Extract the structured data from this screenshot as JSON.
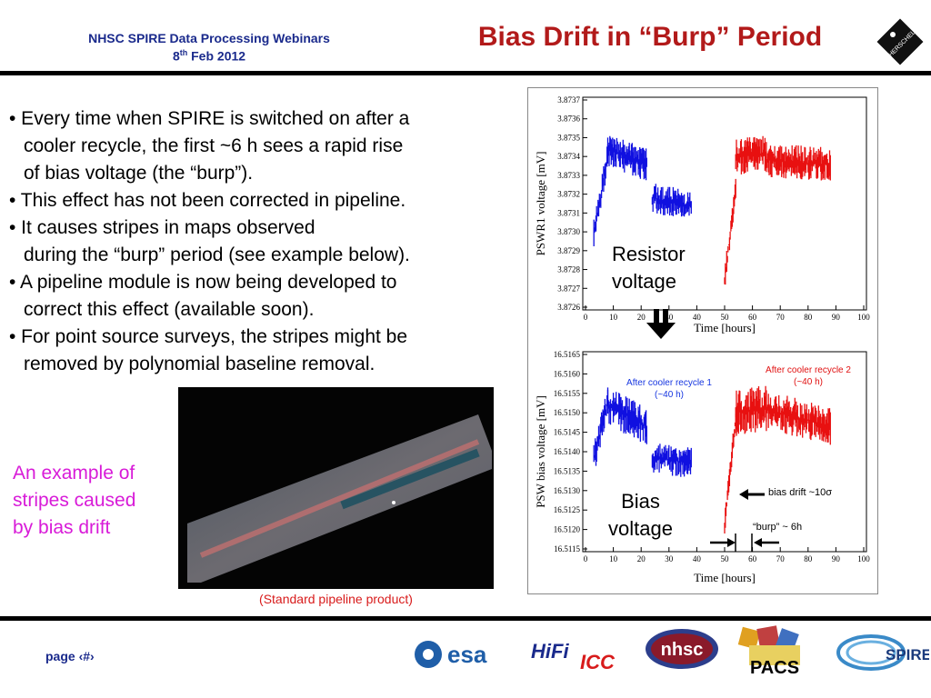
{
  "header": {
    "webinar_title": "NHSC SPIRE Data Processing Webinars",
    "date_day": "8",
    "date_suffix": "th",
    "date_rest": " Feb 2012",
    "slide_title": "Bias Drift in “Burp” Period",
    "herschel_logo_text": "HERSCHEL"
  },
  "bullets": [
    {
      "first": "• Every time when SPIRE is switched on after a",
      "cont": [
        "cooler recycle, the first  ~6 h sees a rapid rise",
        "of bias voltage (the “burp”)."
      ]
    },
    {
      "first": "• This effect has not been corrected in pipeline.",
      "cont": []
    },
    {
      "first": "• It causes stripes in maps observed",
      "cont": [
        "during the “burp” period (see example below)."
      ]
    },
    {
      "first": "• A pipeline module is now being developed to",
      "cont": [
        "correct this effect (available soon)."
      ]
    },
    {
      "first": "• For point source surveys, the stripes might be",
      "cont": [
        "removed by polynomial baseline removal."
      ]
    }
  ],
  "example": {
    "lines": [
      "An example of",
      "stripes caused",
      "by bias drift"
    ],
    "caption": "(Standard pipeline product)"
  },
  "plots": {
    "top": {
      "ylabel": "PSWR1  voltage [mV]",
      "xlabel": "Time [hours]",
      "yticks": [
        "3.8737",
        "3.8736",
        "3.8735",
        "3.8734",
        "3.8733",
        "3.8732",
        "3.8731",
        "3.8730",
        "3.8729",
        "3.8728",
        "3.8727",
        "3.8726"
      ],
      "xticks": [
        "0",
        "10",
        "20",
        "30",
        "40",
        "50",
        "60",
        "70",
        "80",
        "90",
        "100"
      ],
      "overlay": [
        "Resistor",
        "voltage"
      ]
    },
    "bottom": {
      "ylabel": "PSW bias voltage [mV]",
      "xlabel": "Time [hours]",
      "yticks": [
        "16.5165",
        "16.5160",
        "16.5155",
        "16.5150",
        "16.5145",
        "16.5140",
        "16.5135",
        "16.5130",
        "16.5125",
        "16.5120",
        "16.5115"
      ],
      "xticks": [
        "0",
        "10",
        "20",
        "30",
        "40",
        "50",
        "60",
        "70",
        "80",
        "90",
        "100"
      ],
      "overlay": [
        "Bias",
        "voltage"
      ],
      "note_recycle1": [
        "After cooler recycle 1",
        "(~40 h)"
      ],
      "note_recycle2": [
        "After cooler recycle 2",
        "(~40 h)"
      ],
      "note_drift": "bias drift ~10σ",
      "note_burp": "“burp” ~ 6h"
    },
    "series_colors": {
      "recycle1": "#1010e0",
      "recycle2": "#e81010"
    }
  },
  "footer": {
    "page_label": "page ‹#›",
    "logos": [
      "esa",
      "HiFi",
      "ICC",
      "nhsc",
      "PACS",
      "SPIRE"
    ]
  }
}
